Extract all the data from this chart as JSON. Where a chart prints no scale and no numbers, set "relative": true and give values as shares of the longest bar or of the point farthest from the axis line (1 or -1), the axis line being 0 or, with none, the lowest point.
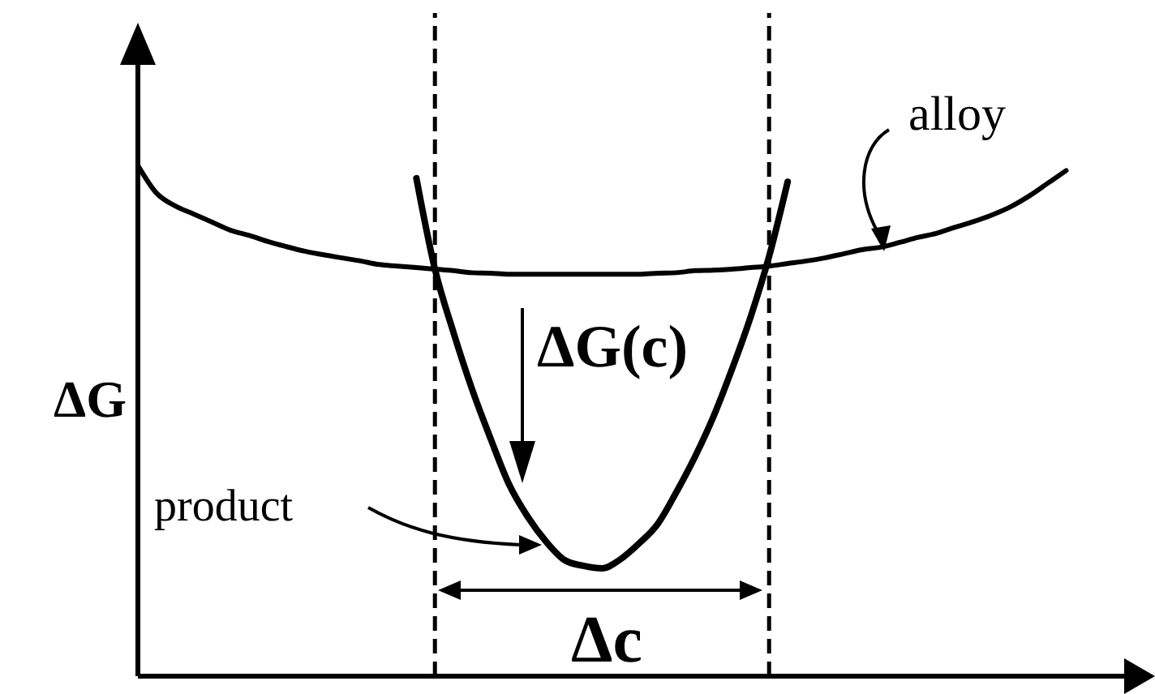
{
  "chart_data": {
    "type": "line",
    "ylabel": "ΔG",
    "annotations": [
      "ΔG(c)",
      "Δc"
    ],
    "relative": true,
    "categories": [
      null,
      null,
      null,
      null,
      null,
      null,
      null,
      null,
      null,
      null,
      null,
      null,
      null,
      null,
      null,
      null,
      null,
      null,
      null,
      null,
      null,
      null,
      null,
      null,
      null,
      null,
      null,
      null,
      null,
      null,
      null,
      null,
      null,
      null,
      null,
      null,
      null,
      null,
      null,
      null,
      null,
      null,
      null,
      null,
      null,
      null,
      null,
      null,
      null,
      null,
      null,
      null,
      null,
      null,
      null
    ],
    "series": [
      {
        "name": "alloy",
        "color": "#000000",
        "values": [
          1,
          0.946,
          0.921,
          0.905,
          0.889,
          0.873,
          0.863,
          0.851,
          0.841,
          0.832,
          0.825,
          0.819,
          0.813,
          0.806,
          0.803,
          0.8,
          0.797,
          0.794,
          0.79,
          0.789,
          0.787,
          0.787,
          0.787,
          0.787,
          0.787,
          0.787,
          0.787,
          0.787,
          0.789,
          0.79,
          0.794,
          0.795,
          0.797,
          0.8,
          0.803,
          0.808,
          0.813,
          0.819,
          0.827,
          0.835,
          0.84,
          0.849,
          0.859,
          0.867,
          0.879,
          0.89,
          0.903,
          0.919,
          0.94,
          0.965,
          0.99,
          null,
          null,
          null,
          null
        ]
      },
      {
        "name": "product",
        "color": "#000000",
        "values": [
          null,
          null,
          null,
          null,
          null,
          null,
          null,
          null,
          null,
          null,
          null,
          null,
          null,
          null,
          null,
          0.975,
          0.797,
          0.673,
          0.562,
          0.465,
          0.375,
          0.312,
          0.263,
          0.227,
          0.216,
          0.211,
          0.229,
          0.26,
          0.298,
          0.36,
          0.429,
          0.508,
          0.601,
          0.703,
          0.822,
          0.968,
          null,
          null,
          null,
          null,
          null,
          null,
          null,
          null,
          null,
          null,
          null,
          null,
          null,
          null,
          null,
          null,
          null,
          null,
          null
        ]
      }
    ]
  }
}
